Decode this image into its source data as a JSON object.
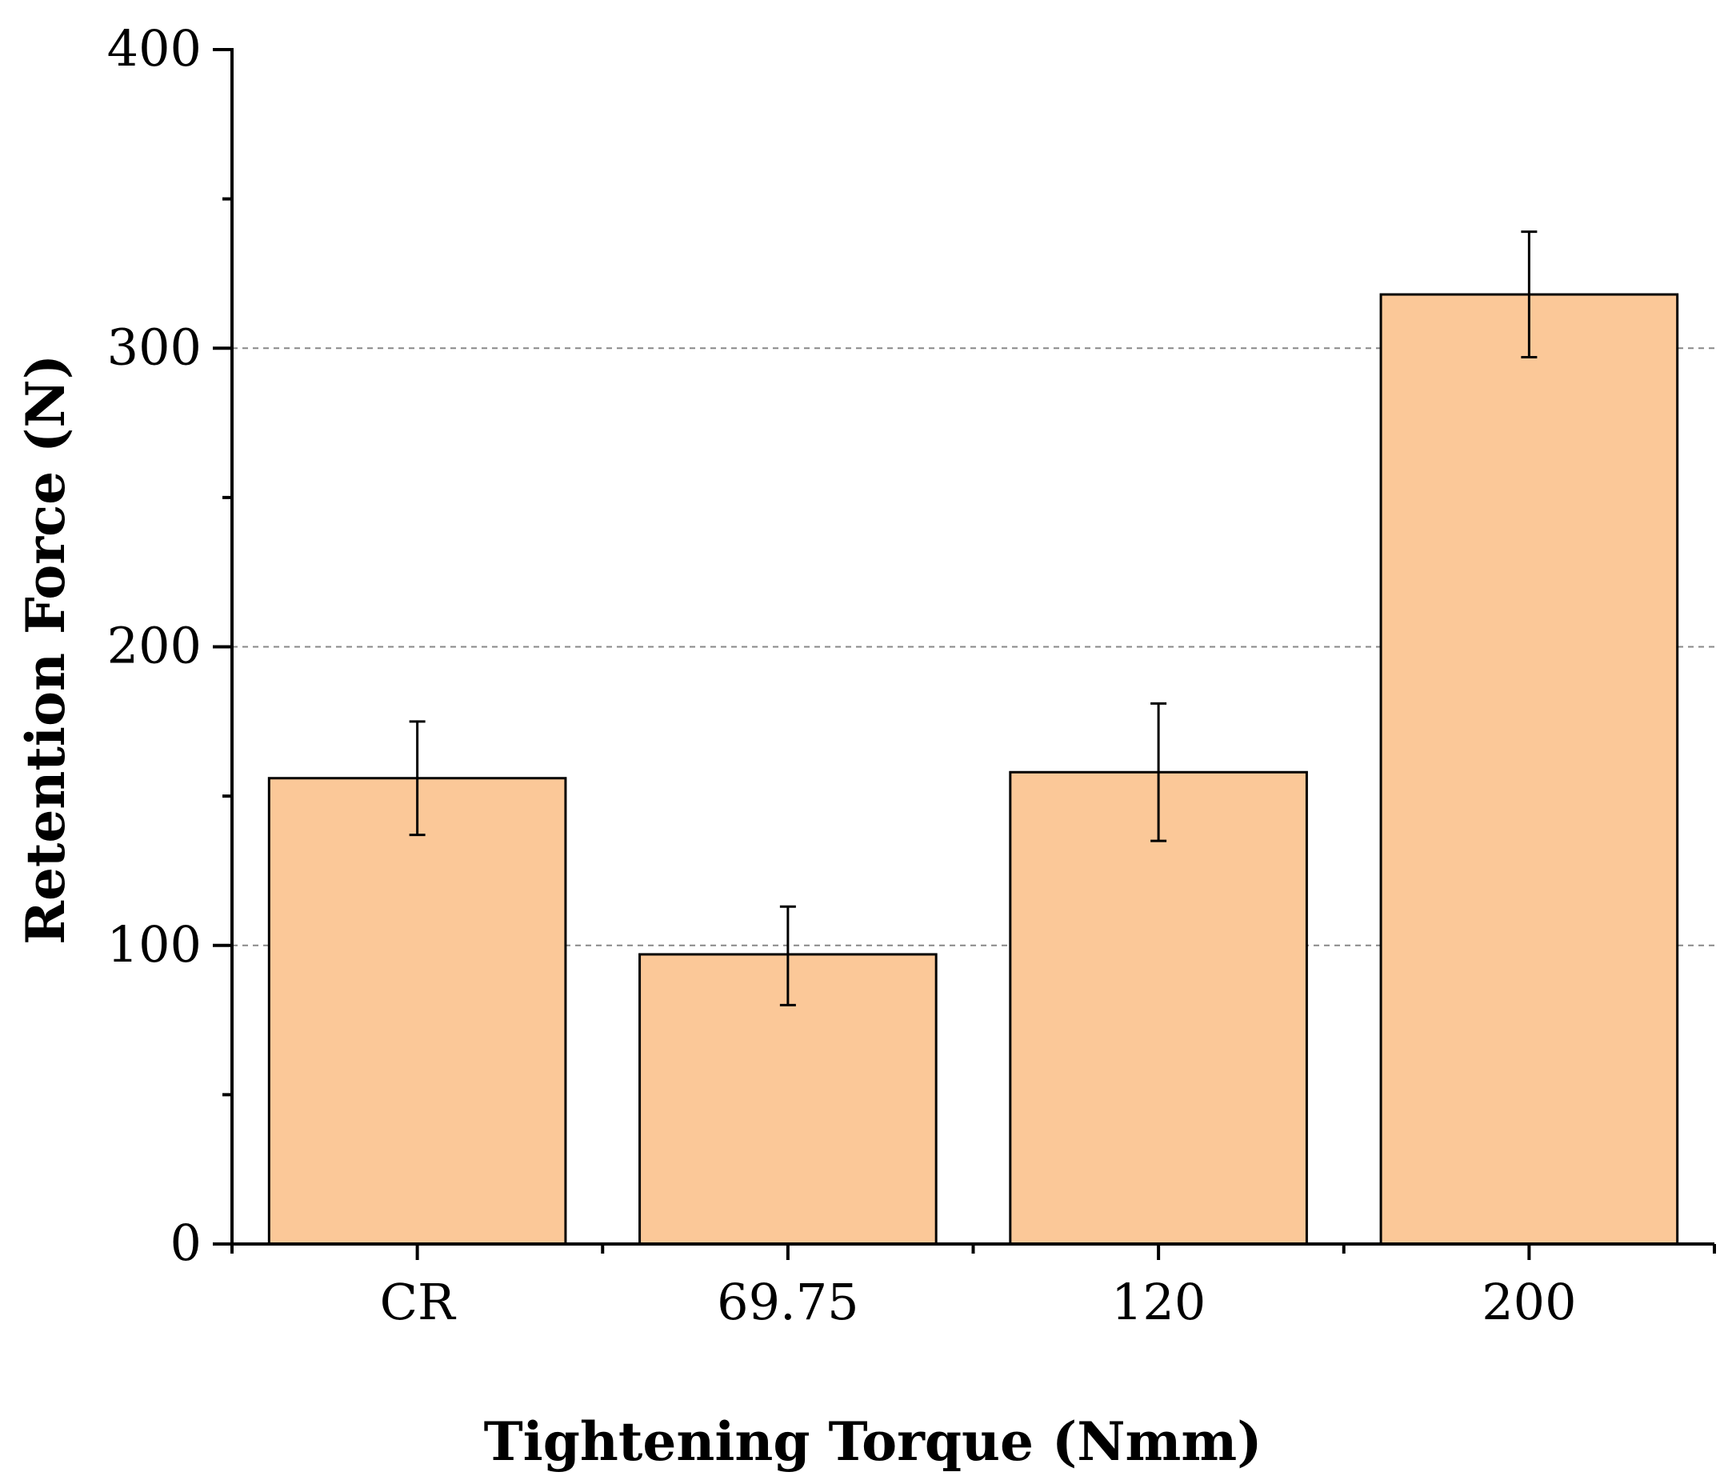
{
  "chart_data": {
    "type": "bar",
    "title": "",
    "xlabel": "Tightening Torque (Nmm)",
    "ylabel": "Retention Force (N)",
    "categories": [
      "CR",
      "69.75",
      "120",
      "200"
    ],
    "values": [
      156,
      97,
      158,
      318
    ],
    "error_low": [
      137,
      80,
      135,
      297
    ],
    "error_high": [
      175,
      113,
      181,
      339
    ],
    "ylim": [
      0,
      400
    ],
    "yticks": [
      0,
      100,
      200,
      300,
      400
    ],
    "ytick_labels": [
      "0",
      "100",
      "200",
      "300",
      "400"
    ],
    "gridlines_at": [
      100,
      200,
      300
    ],
    "grid": true,
    "legend": false,
    "bar_color": "#FBC898",
    "bar_edge_color": "#000000",
    "grid_color": "#888888"
  }
}
